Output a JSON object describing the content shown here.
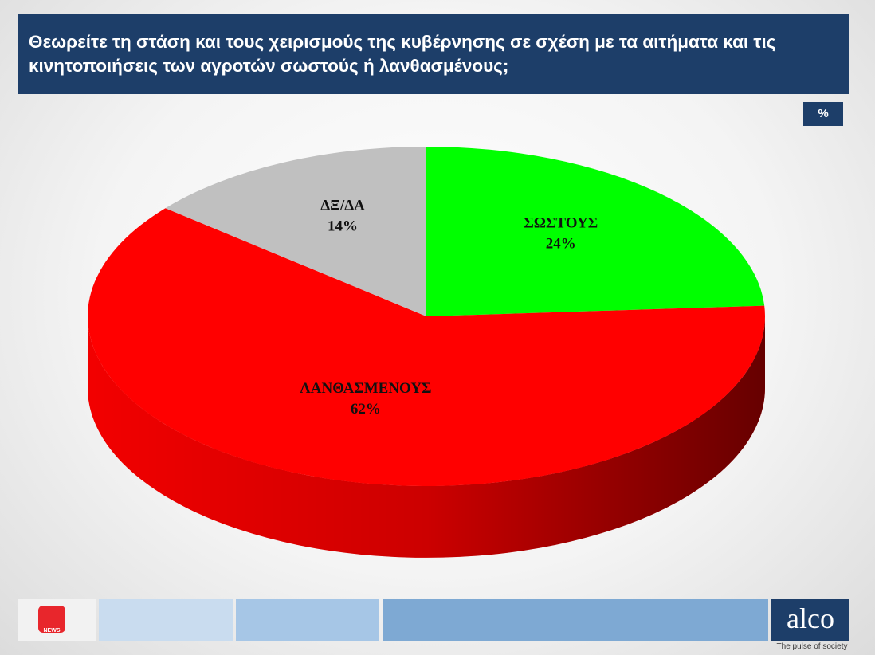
{
  "chart_data": {
    "type": "pie",
    "title": "Θεωρείτε τη στάση και τους χειρισμούς της κυβέρνησης σε σχέση με τα αιτήματα και τις κινητοποιήσεις των αγροτών σωστούς ή λανθασμένους;",
    "unit": "%",
    "categories": [
      "ΣΩΣΤΟΥΣ",
      "ΛΑΝΘΑΣΜΕΝΟΥΣ",
      "ΔΞ/ΔΑ"
    ],
    "values": [
      24,
      62,
      14
    ],
    "value_labels": [
      "24%",
      "62%",
      "14%"
    ],
    "colors": [
      "#00ff00",
      "#ff0000",
      "#c0c0c0"
    ]
  },
  "footer": {
    "channel": "NEWS",
    "logo": "alco",
    "tagline": "The pulse of society"
  }
}
